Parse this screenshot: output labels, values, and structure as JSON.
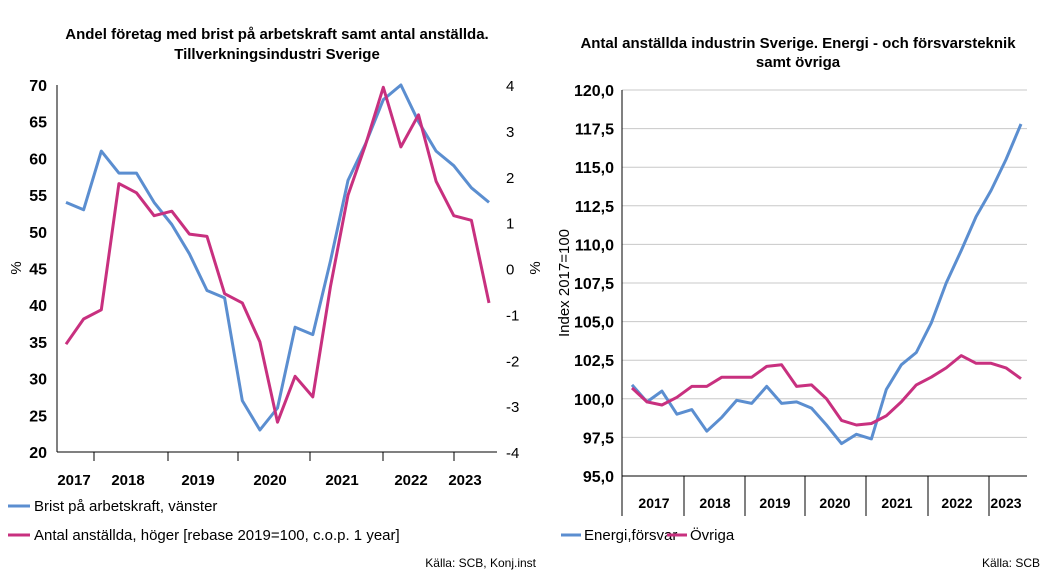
{
  "colors": {
    "blue": "#5B8ED0",
    "pink": "#C8307F",
    "grid": "#C8C8C8"
  },
  "chart_data": [
    {
      "type": "line",
      "title_line1": "Andel företag med brist på arbetskraft samt antal anställda.",
      "title_line2": "Tillverkningsindustri Sverige",
      "ylabel_left": "%",
      "ylabel_right": "%",
      "ylim_left": [
        20,
        70
      ],
      "ylim_right": [
        -4,
        4
      ],
      "yticks_left": [
        "70",
        "65",
        "60",
        "55",
        "50",
        "45",
        "40",
        "35",
        "30",
        "25",
        "20"
      ],
      "yticks_right": [
        "4",
        "3",
        "2",
        "1",
        "0",
        "-1",
        "-2",
        "-3",
        "-4"
      ],
      "x_labels": [
        "2017",
        "2018",
        "2019",
        "2020",
        "2021",
        "2022",
        "2023"
      ],
      "series": [
        {
          "name": "Brist på arbetskraft, vänster",
          "axis": "left",
          "color": "#5B8ED0",
          "values": [
            54,
            53,
            61,
            58,
            58,
            54,
            51,
            47,
            42,
            41,
            27,
            23,
            26,
            37,
            36,
            46,
            57,
            62,
            68,
            70,
            65,
            61,
            59,
            56,
            54
          ]
        },
        {
          "name": "Antal anställda, höger [rebase 2019=100, c.o.p. 1 year]",
          "axis": "right",
          "color": "#C8307F",
          "values": [
            -1.65,
            -1.1,
            -0.9,
            1.85,
            1.65,
            1.15,
            1.25,
            0.75,
            0.7,
            -0.55,
            -0.75,
            -1.6,
            -3.35,
            -2.35,
            -2.8,
            -0.4,
            1.6,
            2.7,
            3.95,
            2.65,
            3.35,
            1.9,
            1.15,
            1.05,
            -0.75
          ]
        }
      ],
      "legend": [
        "Brist på arbetskraft, vänster",
        "Antal anställda, höger [rebase 2019=100, c.o.p. 1 year]"
      ],
      "source": "Källa: SCB, Konj.inst"
    },
    {
      "type": "line",
      "title_line1": "Antal anställda industrin Sverige. Energi  - och försvarsteknik",
      "title_line2": "samt övriga",
      "ylabel": "Index 2017=100",
      "ylim": [
        95,
        120
      ],
      "yticks": [
        "120,0",
        "117,5",
        "115,0",
        "112,5",
        "110,0",
        "107,5",
        "105,0",
        "102,5",
        "100,0",
        "97,5",
        "95,0"
      ],
      "x_labels": [
        "2017",
        "2018",
        "2019",
        "2020",
        "2021",
        "2022",
        "2023"
      ],
      "series": [
        {
          "name": "Energi,försvar",
          "color": "#5B8ED0",
          "values": [
            100.9,
            99.8,
            100.5,
            99.0,
            99.3,
            97.9,
            98.8,
            99.9,
            99.7,
            100.8,
            99.7,
            99.8,
            99.4,
            98.3,
            97.1,
            97.7,
            97.4,
            100.6,
            102.2,
            103.0,
            104.9,
            107.5,
            109.6,
            111.8,
            113.5,
            115.5,
            117.8
          ]
        },
        {
          "name": "Övriga",
          "color": "#C8307F",
          "values": [
            100.7,
            99.8,
            99.6,
            100.1,
            100.8,
            100.8,
            101.4,
            101.4,
            101.4,
            102.1,
            102.2,
            100.8,
            100.9,
            100.0,
            98.6,
            98.3,
            98.4,
            98.9,
            99.8,
            100.9,
            101.4,
            102.0,
            102.8,
            102.3,
            102.3,
            102.0,
            101.3
          ]
        }
      ],
      "legend": [
        "Energi,försvar",
        "Övriga"
      ],
      "source": "Källa: SCB"
    }
  ]
}
